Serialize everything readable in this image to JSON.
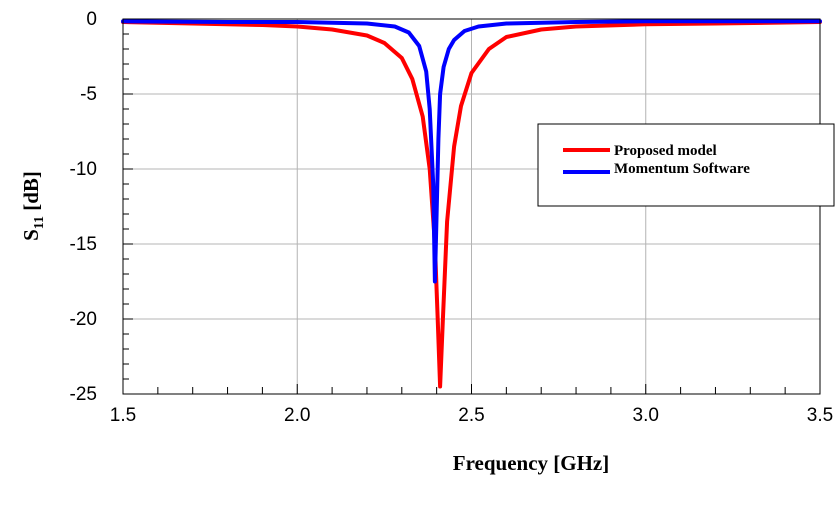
{
  "chart_data": {
    "type": "line",
    "xlabel": "Frequency [GHz]",
    "ylabel_main": "S",
    "ylabel_sub": "11",
    "ylabel_unit": " [dB]",
    "xlim": [
      1.5,
      3.5
    ],
    "ylim": [
      -25,
      0
    ],
    "x_ticks": [
      "1.5",
      "2.0",
      "2.5",
      "3.0",
      "3.5"
    ],
    "y_ticks": [
      "0",
      "-5",
      "-10",
      "-15",
      "-20",
      "-25"
    ],
    "grid": true,
    "legend_position": "right",
    "series": [
      {
        "name": "Proposed model",
        "color": "#ff0000",
        "x": [
          1.5,
          1.7,
          1.9,
          2.0,
          2.1,
          2.2,
          2.25,
          2.3,
          2.33,
          2.36,
          2.38,
          2.395,
          2.403,
          2.41,
          2.418,
          2.43,
          2.45,
          2.47,
          2.5,
          2.55,
          2.6,
          2.7,
          2.8,
          3.0,
          3.2,
          3.5
        ],
        "y": [
          -0.2,
          -0.3,
          -0.4,
          -0.5,
          -0.7,
          -1.1,
          -1.6,
          -2.6,
          -4.0,
          -6.5,
          -10.0,
          -15.0,
          -20.0,
          -24.5,
          -20.0,
          -13.5,
          -8.5,
          -5.8,
          -3.6,
          -2.0,
          -1.2,
          -0.7,
          -0.5,
          -0.35,
          -0.3,
          -0.2
        ]
      },
      {
        "name": "Momentum Software",
        "color": "#0000ff",
        "x": [
          1.5,
          1.8,
          2.0,
          2.2,
          2.28,
          2.32,
          2.35,
          2.37,
          2.38,
          2.39,
          2.395,
          2.4,
          2.405,
          2.41,
          2.42,
          2.435,
          2.45,
          2.48,
          2.52,
          2.6,
          2.8,
          3.0,
          3.5
        ],
        "y": [
          -0.15,
          -0.2,
          -0.2,
          -0.3,
          -0.5,
          -0.9,
          -1.8,
          -3.5,
          -6.0,
          -11.0,
          -17.5,
          -13.0,
          -8.0,
          -5.0,
          -3.2,
          -2.0,
          -1.4,
          -0.8,
          -0.5,
          -0.3,
          -0.2,
          -0.15,
          -0.15
        ]
      }
    ]
  }
}
